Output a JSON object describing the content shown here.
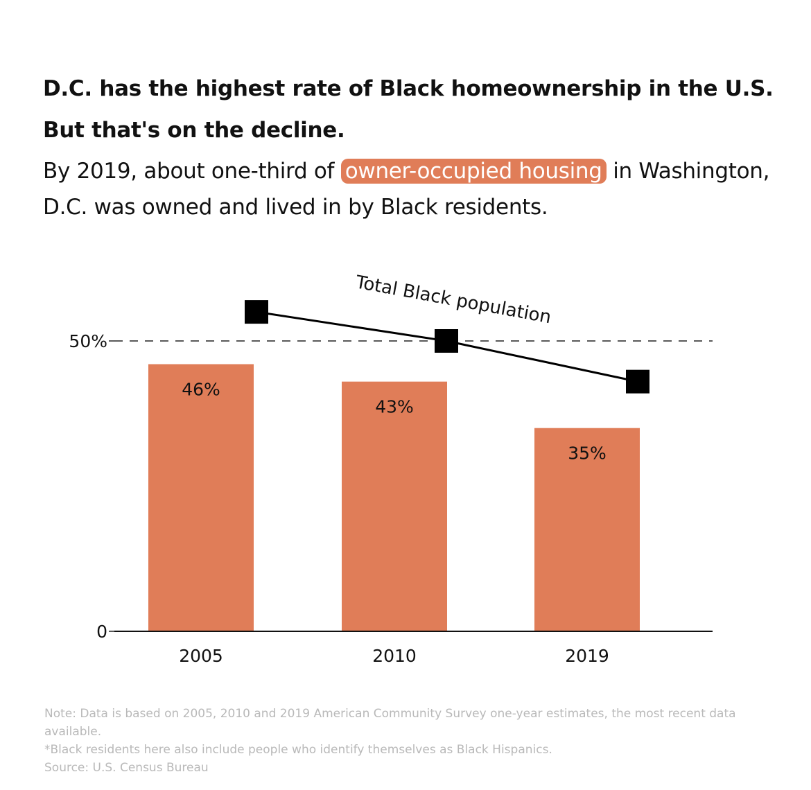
{
  "header": {
    "headline_line1": "D.C. has the highest rate of Black homeownership in the U.S.",
    "headline_line2": "But that's on the decline.",
    "subhead_before": "By 2019, about one-third of ",
    "subhead_highlight": "owner-occupied housing",
    "subhead_after": " in Washington, D.C. was owned and lived in by Black residents."
  },
  "chart_data": {
    "type": "bar",
    "categories": [
      "2005",
      "2010",
      "2019"
    ],
    "values": [
      46,
      43,
      35
    ],
    "value_labels": [
      "46%",
      "43%",
      "35%"
    ],
    "ylim": [
      0,
      50
    ],
    "ytick_labels": [
      "0",
      "50%"
    ],
    "bar_color": "#e07d58",
    "line_series": {
      "name": "Total Black population",
      "values": [
        55,
        50,
        43
      ],
      "marker": "square",
      "color": "#000000"
    },
    "reference_line": {
      "value": 50,
      "style": "dashed"
    }
  },
  "notes": {
    "note": "Note: Data is based on 2005, 2010 and 2019 American Community Survey one-year estimates, the most recent data available.",
    "footnote": "*Black residents here also include people who identify themselves as Black Hispanics.",
    "source": "Source: U.S. Census Bureau"
  }
}
